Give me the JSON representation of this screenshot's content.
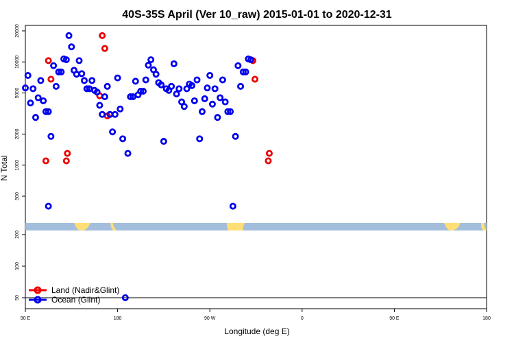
{
  "chart_data": {
    "type": "scatter",
    "title": "40S-35S April (Ver 10_raw)   2015-01-01 to 2020-12-31",
    "xlabel": "Longitude (deg E)",
    "ylabel": "N Total",
    "y_scale": "log",
    "grid": false,
    "legend_position": "bottom-left",
    "x_tick_labels": [
      "90 E",
      "180",
      "90 W",
      "0",
      "90 E",
      "180"
    ],
    "y_tick_labels_top": [
      "500",
      "1000",
      "2000",
      "5000",
      "10000",
      "20000"
    ],
    "y_tick_labels_bottom": [
      "50",
      "100",
      "200"
    ],
    "colors": {
      "land": "#ee0000",
      "ocean": "#0000ee",
      "map_ocean": "#a3bedc",
      "map_land": "#ffde75"
    },
    "series": [
      {
        "name": "Land (Nadir&Glint)",
        "color": "#ee0000",
        "points": [
          [
            110,
            1100
          ],
          [
            112.5,
            10300
          ],
          [
            115,
            6800
          ],
          [
            130,
            1100
          ],
          [
            131,
            1300
          ],
          [
            162.5,
            4700
          ],
          [
            165,
            18000
          ],
          [
            167.5,
            13500
          ],
          [
            170,
            3000
          ],
          [
            312,
            10300
          ],
          [
            314,
            6800
          ],
          [
            327,
            1100
          ],
          [
            328,
            1300
          ]
        ]
      },
      {
        "name": "Ocean (Glint)",
        "color": "#0000ee",
        "points": [
          [
            90,
            5600
          ],
          [
            92.5,
            7400
          ],
          [
            95,
            4000
          ],
          [
            97.5,
            5500
          ],
          [
            100,
            2900
          ],
          [
            102.5,
            4500
          ],
          [
            105,
            6600
          ],
          [
            107.5,
            4200
          ],
          [
            110,
            3300
          ],
          [
            112.5,
            3300
          ],
          [
            112.5,
            400
          ],
          [
            115,
            1900
          ],
          [
            117.5,
            9200
          ],
          [
            120,
            5800
          ],
          [
            122.5,
            8000
          ],
          [
            125,
            8000
          ],
          [
            127.5,
            10700
          ],
          [
            130,
            10500
          ],
          [
            132.5,
            18000
          ],
          [
            135,
            14000
          ],
          [
            137.5,
            8300
          ],
          [
            140,
            7600
          ],
          [
            142.5,
            10300
          ],
          [
            145,
            7700
          ],
          [
            147.5,
            6600
          ],
          [
            150,
            5500
          ],
          [
            152.5,
            5500
          ],
          [
            155,
            6600
          ],
          [
            157.5,
            5300
          ],
          [
            160,
            5100
          ],
          [
            162.5,
            3800
          ],
          [
            165,
            3100
          ],
          [
            167.5,
            4600
          ],
          [
            170,
            5800
          ],
          [
            172.5,
            3100
          ],
          [
            175,
            2100
          ],
          [
            177.5,
            3100
          ],
          [
            180,
            7000
          ],
          [
            182.5,
            3500
          ],
          [
            185,
            1800
          ],
          [
            187.5,
            50
          ],
          [
            190,
            1300
          ],
          [
            192.5,
            4600
          ],
          [
            195,
            4600
          ],
          [
            197.5,
            6500
          ],
          [
            200,
            4800
          ],
          [
            202.5,
            5200
          ],
          [
            205,
            5200
          ],
          [
            207.5,
            6700
          ],
          [
            210,
            9300
          ],
          [
            212.5,
            10500
          ],
          [
            215,
            8400
          ],
          [
            217.5,
            7600
          ],
          [
            220,
            6300
          ],
          [
            222.5,
            6000
          ],
          [
            225,
            1700
          ],
          [
            227.5,
            5500
          ],
          [
            230,
            5300
          ],
          [
            232.5,
            5800
          ],
          [
            235,
            9600
          ],
          [
            237.5,
            4900
          ],
          [
            240,
            5500
          ],
          [
            242.5,
            4100
          ],
          [
            245,
            3700
          ],
          [
            247.5,
            5500
          ],
          [
            250,
            6100
          ],
          [
            252.5,
            5900
          ],
          [
            255,
            4200
          ],
          [
            257.5,
            6700
          ],
          [
            260,
            1800
          ],
          [
            262.5,
            3300
          ],
          [
            265,
            4400
          ],
          [
            267.5,
            5600
          ],
          [
            270,
            7400
          ],
          [
            272.5,
            3900
          ],
          [
            275,
            5500
          ],
          [
            277.5,
            2900
          ],
          [
            280,
            4500
          ],
          [
            282.5,
            6700
          ],
          [
            285,
            4100
          ],
          [
            287.5,
            3300
          ],
          [
            290,
            3300
          ],
          [
            292.5,
            400
          ],
          [
            295,
            1900
          ],
          [
            297.5,
            9200
          ],
          [
            300,
            5800
          ],
          [
            302.5,
            8000
          ],
          [
            305,
            8000
          ],
          [
            307.5,
            10700
          ],
          [
            310,
            10500
          ]
        ]
      }
    ]
  }
}
